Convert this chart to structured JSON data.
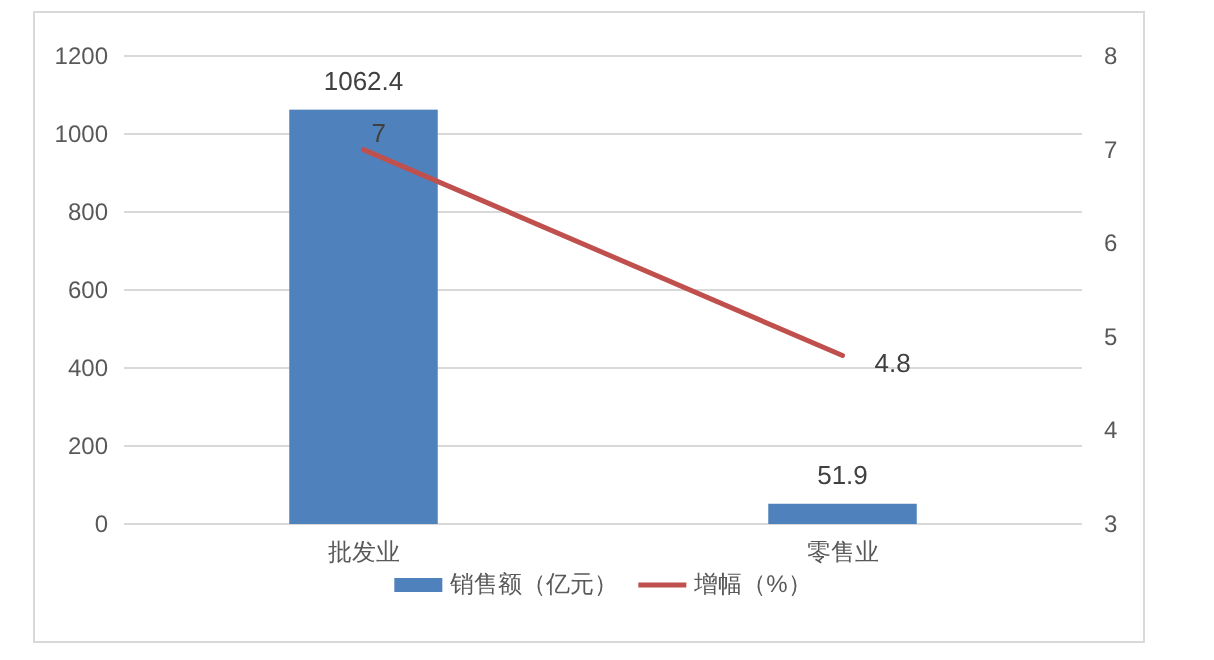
{
  "chart_data": {
    "type": "bar",
    "categories": [
      "批发业",
      "零售业"
    ],
    "series": [
      {
        "name": "销售额（亿元）",
        "color": "#4f81bd",
        "values": [
          1062.4,
          51.9
        ]
      },
      {
        "name": "增幅（%）",
        "type": "line",
        "axis": "y2",
        "color": "#c0504d",
        "values": [
          7,
          4.8
        ]
      }
    ],
    "ylim": [
      0,
      1200
    ],
    "yticks": [
      0,
      200,
      400,
      600,
      800,
      1000,
      1200
    ],
    "y2lim": [
      3,
      8
    ],
    "y2ticks": [
      3,
      4,
      5,
      6,
      7,
      8
    ],
    "data_labels": true,
    "grid": "y",
    "legend": "bottom",
    "marker": "none"
  }
}
